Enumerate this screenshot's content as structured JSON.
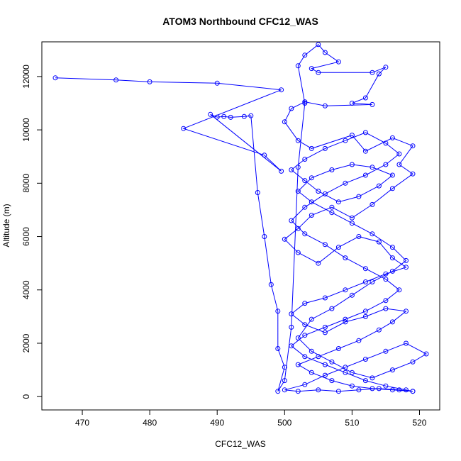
{
  "chart_data": {
    "type": "scatter",
    "title": "ATOM3 Northbound CFC12_WAS",
    "xlabel": "CFC12_WAS",
    "ylabel": "Altitude (m)",
    "xlim": [
      464,
      523
    ],
    "ylim": [
      -500,
      13300
    ],
    "xticks": [
      470,
      480,
      490,
      500,
      510,
      520
    ],
    "yticks": [
      0,
      2000,
      4000,
      6000,
      8000,
      10000,
      12000
    ],
    "color": "#0000ff",
    "connected": true,
    "series": [
      {
        "points": [
          [
            466,
            11950
          ],
          [
            475,
            11870
          ],
          [
            480,
            11800
          ],
          [
            490,
            11750
          ],
          [
            499.5,
            11500
          ],
          [
            485,
            10050
          ],
          [
            497,
            9050
          ],
          [
            499.5,
            8450
          ],
          [
            489,
            10580
          ],
          [
            490,
            10480
          ],
          [
            491,
            10500
          ],
          [
            492,
            10470
          ],
          [
            494,
            10500
          ],
          [
            495,
            10530
          ],
          [
            496,
            7650
          ],
          [
            497,
            6000
          ],
          [
            498,
            4200
          ],
          [
            499,
            3200
          ],
          [
            499,
            1800
          ],
          [
            500,
            1100
          ],
          [
            499,
            200
          ],
          [
            500,
            600
          ],
          [
            501,
            2600
          ],
          [
            502,
            8600
          ],
          [
            503,
            11000
          ],
          [
            502,
            12400
          ],
          [
            503,
            12800
          ],
          [
            505,
            13200
          ],
          [
            506,
            12900
          ],
          [
            508,
            12550
          ],
          [
            504,
            12300
          ],
          [
            505,
            12150
          ],
          [
            513,
            12150
          ],
          [
            515,
            12350
          ],
          [
            514,
            12100
          ],
          [
            512,
            11200
          ],
          [
            510,
            11000
          ],
          [
            513,
            10950
          ],
          [
            506,
            10900
          ],
          [
            503,
            11050
          ],
          [
            501,
            10800
          ],
          [
            500,
            10300
          ],
          [
            502,
            9600
          ],
          [
            504,
            9300
          ],
          [
            510,
            9800
          ],
          [
            512,
            9200
          ],
          [
            516,
            9700
          ],
          [
            519,
            9400
          ],
          [
            517,
            8700
          ],
          [
            519,
            8350
          ],
          [
            516,
            7800
          ],
          [
            513,
            7200
          ],
          [
            510,
            6700
          ],
          [
            507,
            7100
          ],
          [
            504,
            6800
          ],
          [
            502,
            6300
          ],
          [
            500,
            5900
          ],
          [
            502,
            5400
          ],
          [
            505,
            5000
          ],
          [
            508,
            5600
          ],
          [
            511,
            6000
          ],
          [
            514,
            5800
          ],
          [
            516,
            5200
          ],
          [
            518,
            4850
          ],
          [
            515,
            4600
          ],
          [
            512,
            4300
          ],
          [
            509,
            4000
          ],
          [
            506,
            3700
          ],
          [
            503,
            3500
          ],
          [
            501,
            3100
          ],
          [
            503,
            2700
          ],
          [
            506,
            2400
          ],
          [
            509,
            2800
          ],
          [
            512,
            3000
          ],
          [
            515,
            3300
          ],
          [
            518,
            3200
          ],
          [
            516,
            2800
          ],
          [
            514,
            2500
          ],
          [
            511,
            2100
          ],
          [
            508,
            1800
          ],
          [
            505,
            1500
          ],
          [
            502,
            1200
          ],
          [
            504,
            900
          ],
          [
            507,
            600
          ],
          [
            510,
            400
          ],
          [
            513,
            300
          ],
          [
            516,
            250
          ],
          [
            519,
            200
          ],
          [
            517,
            250
          ],
          [
            514,
            300
          ],
          [
            511,
            250
          ],
          [
            508,
            200
          ],
          [
            505,
            250
          ],
          [
            502,
            200
          ],
          [
            500,
            250
          ],
          [
            503,
            450
          ],
          [
            506,
            800
          ],
          [
            509,
            1100
          ],
          [
            512,
            1400
          ],
          [
            515,
            1700
          ],
          [
            518,
            2000
          ],
          [
            521,
            1600
          ],
          [
            519,
            1300
          ],
          [
            516,
            1000
          ],
          [
            513,
            700
          ],
          [
            510,
            900
          ],
          [
            507,
            1300
          ],
          [
            504,
            1700
          ],
          [
            502,
            2200
          ],
          [
            504,
            2900
          ],
          [
            507,
            3300
          ],
          [
            510,
            3800
          ],
          [
            513,
            4300
          ],
          [
            516,
            4700
          ],
          [
            518,
            5100
          ],
          [
            516,
            5600
          ],
          [
            513,
            6100
          ],
          [
            510,
            6500
          ],
          [
            507,
            6900
          ],
          [
            504,
            7300
          ],
          [
            502,
            7700
          ],
          [
            504,
            8200
          ],
          [
            507,
            8500
          ],
          [
            510,
            8700
          ],
          [
            513,
            8600
          ],
          [
            516,
            8300
          ],
          [
            514,
            7900
          ],
          [
            511,
            7500
          ],
          [
            508,
            7300
          ],
          [
            505,
            7700
          ],
          [
            503,
            8100
          ],
          [
            501,
            8500
          ],
          [
            503,
            8900
          ],
          [
            506,
            9300
          ],
          [
            509,
            9600
          ],
          [
            512,
            9900
          ],
          [
            515,
            9500
          ],
          [
            517,
            9100
          ],
          [
            515,
            8700
          ],
          [
            512,
            8300
          ],
          [
            509,
            8000
          ],
          [
            506,
            7600
          ],
          [
            503,
            7100
          ],
          [
            501,
            6600
          ],
          [
            503,
            6100
          ],
          [
            506,
            5700
          ],
          [
            509,
            5200
          ],
          [
            512,
            4800
          ],
          [
            515,
            4400
          ],
          [
            517,
            4000
          ],
          [
            515,
            3600
          ],
          [
            512,
            3200
          ],
          [
            509,
            2900
          ],
          [
            506,
            2600
          ],
          [
            503,
            2300
          ],
          [
            501,
            1900
          ],
          [
            503,
            1500
          ],
          [
            506,
            1200
          ],
          [
            509,
            900
          ],
          [
            512,
            600
          ],
          [
            515,
            400
          ],
          [
            518,
            250
          ],
          [
            519,
            200
          ]
        ]
      }
    ]
  }
}
